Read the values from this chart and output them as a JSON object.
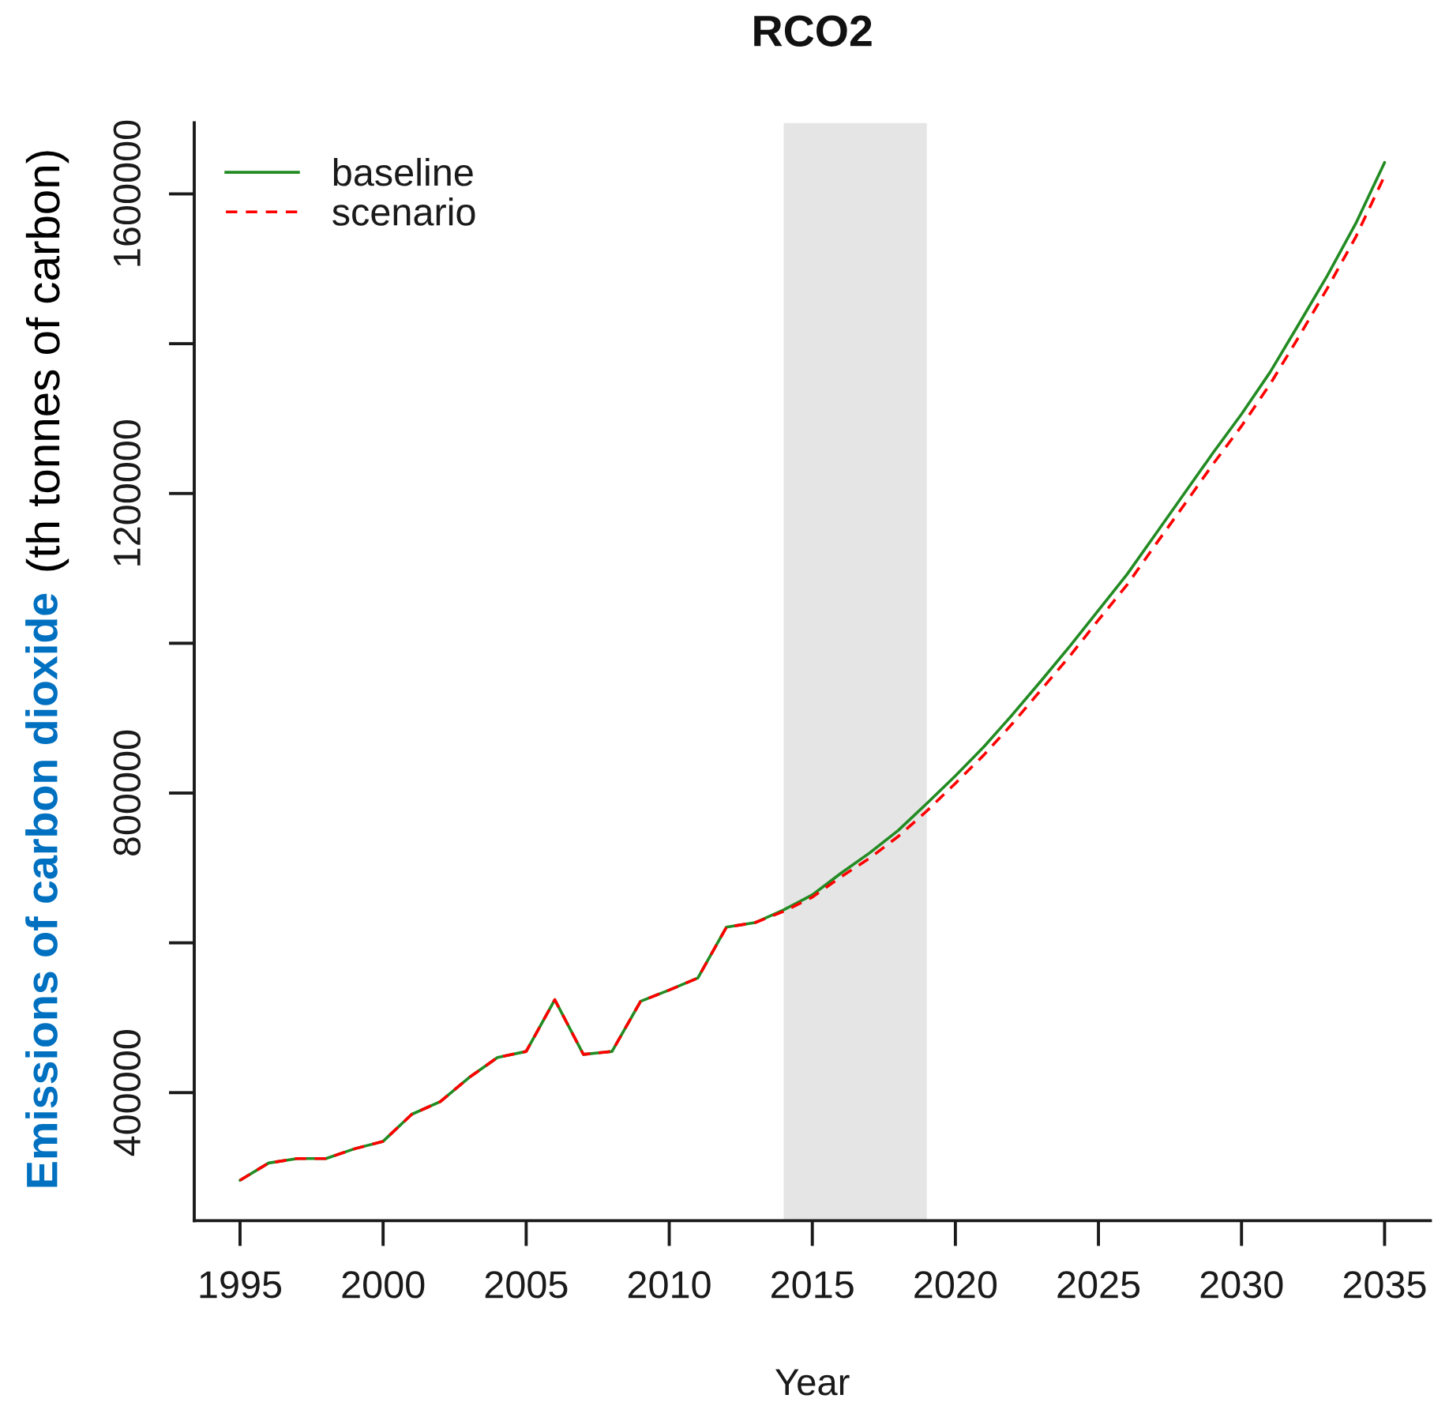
{
  "chart_data": {
    "type": "line",
    "title": "RCO2",
    "xlabel": "Year",
    "ylabel": "Emissions of carbon dioxide",
    "annotations": [
      "(th tonnes of carbon)"
    ],
    "x": [
      1995,
      1996,
      1997,
      1998,
      1999,
      2000,
      2001,
      2002,
      2003,
      2004,
      2005,
      2006,
      2007,
      2008,
      2009,
      2010,
      2011,
      2012,
      2013,
      2014,
      2015,
      2016,
      2017,
      2018,
      2019,
      2020,
      2021,
      2022,
      2023,
      2024,
      2025,
      2026,
      2027,
      2028,
      2029,
      2030,
      2031,
      2032,
      2033,
      2034,
      2035
    ],
    "series": [
      {
        "name": "baseline",
        "color": "#228b22",
        "line_style": "solid",
        "values": [
          283000,
          306000,
          312000,
          312000,
          325000,
          335000,
          371000,
          388000,
          420000,
          447000,
          455000,
          524000,
          451000,
          455000,
          522000,
          537000,
          553000,
          621000,
          627000,
          644000,
          664000,
          693000,
          720000,
          750000,
          786000,
          823000,
          862000,
          905000,
          950000,
          996000,
          1044000,
          1092000,
          1146000,
          1200000,
          1254000,
          1306000,
          1362000,
          1426000,
          1491000,
          1561000,
          1642000
        ]
      },
      {
        "name": "scenario",
        "color": "#ff0000",
        "line_style": "dashed",
        "values": [
          283000,
          306000,
          312000,
          312000,
          325000,
          335000,
          371000,
          388000,
          420000,
          447000,
          455000,
          524000,
          451000,
          455000,
          522000,
          537000,
          553000,
          621000,
          627000,
          642000,
          661000,
          688000,
          713000,
          742000,
          776000,
          813000,
          851000,
          893000,
          938000,
          983000,
          1031000,
          1078000,
          1132000,
          1185000,
          1239000,
          1290000,
          1346000,
          1409000,
          1474000,
          1543000,
          1624000
        ]
      }
    ],
    "xlim": [
      1993.4,
      2036.6
    ],
    "xticks": [
      1995,
      2000,
      2005,
      2010,
      2015,
      2020,
      2025,
      2030,
      2035
    ],
    "ylim": [
      229000,
      1695000
    ],
    "yticks": [
      400000,
      {
        "value": 600000,
        "label": null
      },
      800000,
      {
        "value": 1000000,
        "label": null
      },
      1200000,
      {
        "value": 1400000,
        "label": null
      },
      1600000
    ],
    "bands": [
      {
        "axis": "x",
        "from": 2014,
        "to": 2019,
        "color": "#e5e5e5"
      }
    ],
    "legend": "top left"
  }
}
